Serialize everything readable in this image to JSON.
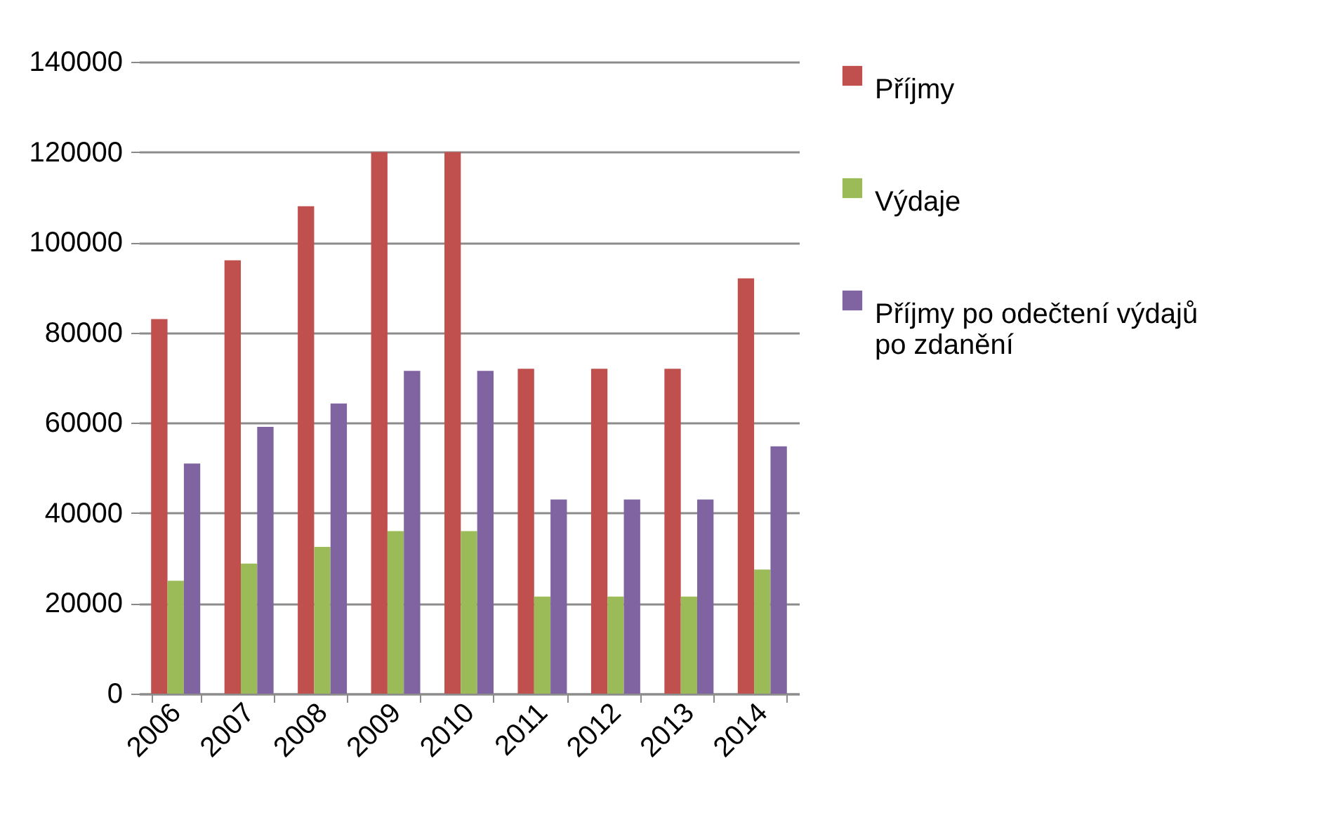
{
  "chart_data": {
    "type": "bar",
    "categories": [
      "2006",
      "2007",
      "2008",
      "2009",
      "2010",
      "2011",
      "2012",
      "2013",
      "2014"
    ],
    "series": [
      {
        "name": "Příjmy",
        "color": "#c0504d",
        "values": [
          83000,
          96000,
          108000,
          120000,
          120000,
          72000,
          72000,
          72000,
          92000
        ]
      },
      {
        "name": "Výdaje",
        "color": "#9bbb59",
        "values": [
          25000,
          28800,
          32500,
          36000,
          36000,
          21500,
          21500,
          21500,
          27500
        ]
      },
      {
        "name": "Příjmy po odečtení výdajů po zdanění",
        "color": "#8064a2",
        "values": [
          51000,
          59100,
          64300,
          71500,
          71500,
          43000,
          43000,
          43000,
          54800
        ]
      }
    ],
    "ylim": [
      0,
      140000
    ],
    "yticks": [
      0,
      20000,
      40000,
      60000,
      80000,
      100000,
      120000,
      140000
    ],
    "grid": "y",
    "legend": "right"
  }
}
